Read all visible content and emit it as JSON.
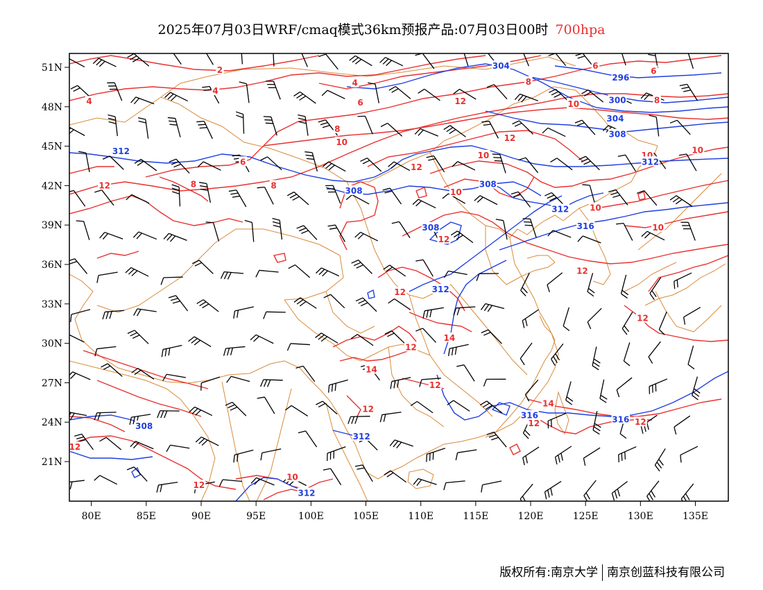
{
  "title": {
    "main": "2025年07月03日WRF/cmaq模式36km预报产品:07月03日00时",
    "level": "700hpa"
  },
  "footer": {
    "left": "版权所有:南京大学",
    "right": "南京创蓝科技有限公司"
  },
  "colors": {
    "temperature": "#e8302f",
    "geopotential": "#1f3fe0",
    "border": "#d98a3a",
    "wind": "#000000"
  },
  "axes": {
    "lat_labels": [
      "51N",
      "48N",
      "45N",
      "42N",
      "39N",
      "36N",
      "33N",
      "30N",
      "27N",
      "24N",
      "21N"
    ],
    "lon_labels": [
      "80E",
      "85E",
      "90E",
      "95E",
      "100E",
      "105E",
      "110E",
      "115E",
      "120E",
      "125E",
      "130E",
      "135E"
    ]
  },
  "contour_labels": {
    "temperature": [
      {
        "text": "2",
        "lon": 91.7,
        "lat": 50.8
      },
      {
        "text": "4",
        "lon": 79.8,
        "lat": 48.4
      },
      {
        "text": "4",
        "lon": 91.3,
        "lat": 49.2
      },
      {
        "text": "4",
        "lon": 104.0,
        "lat": 49.8
      },
      {
        "text": "6",
        "lon": 104.5,
        "lat": 48.3
      },
      {
        "text": "6",
        "lon": 125.9,
        "lat": 51.1
      },
      {
        "text": "6",
        "lon": 131.2,
        "lat": 50.7
      },
      {
        "text": "8",
        "lon": 119.8,
        "lat": 49.9
      },
      {
        "text": "8",
        "lon": 131.5,
        "lat": 48.5
      },
      {
        "text": "8",
        "lon": 102.4,
        "lat": 46.3
      },
      {
        "text": "10",
        "lon": 102.8,
        "lat": 45.3
      },
      {
        "text": "10",
        "lon": 123.9,
        "lat": 48.2
      },
      {
        "text": "12",
        "lon": 113.6,
        "lat": 48.4
      },
      {
        "text": "12",
        "lon": 118.1,
        "lat": 45.6
      },
      {
        "text": "6",
        "lon": 93.8,
        "lat": 43.8
      },
      {
        "text": "8",
        "lon": 89.3,
        "lat": 42.1
      },
      {
        "text": "8",
        "lon": 96.6,
        "lat": 42.0
      },
      {
        "text": "12",
        "lon": 81.2,
        "lat": 42.0
      },
      {
        "text": "12",
        "lon": 109.6,
        "lat": 43.4
      },
      {
        "text": "10",
        "lon": 115.7,
        "lat": 44.3
      },
      {
        "text": "10",
        "lon": 113.2,
        "lat": 41.5
      },
      {
        "text": "10",
        "lon": 130.6,
        "lat": 44.3
      },
      {
        "text": "10",
        "lon": 135.2,
        "lat": 44.7
      },
      {
        "text": "10",
        "lon": 125.9,
        "lat": 40.3
      },
      {
        "text": "10",
        "lon": 131.6,
        "lat": 38.8
      },
      {
        "text": "12",
        "lon": 112.1,
        "lat": 37.9
      },
      {
        "text": "12",
        "lon": 124.7,
        "lat": 35.5
      },
      {
        "text": "12",
        "lon": 108.1,
        "lat": 33.9
      },
      {
        "text": "14",
        "lon": 112.6,
        "lat": 30.4
      },
      {
        "text": "12",
        "lon": 109.1,
        "lat": 29.7
      },
      {
        "text": "14",
        "lon": 105.5,
        "lat": 28.0
      },
      {
        "text": "12",
        "lon": 111.3,
        "lat": 26.8
      },
      {
        "text": "12",
        "lon": 105.2,
        "lat": 25.0
      },
      {
        "text": "14",
        "lon": 121.6,
        "lat": 25.4
      },
      {
        "text": "12",
        "lon": 120.3,
        "lat": 23.9
      },
      {
        "text": "12",
        "lon": 130.0,
        "lat": 24.0
      },
      {
        "text": "12",
        "lon": 130.2,
        "lat": 31.9
      },
      {
        "text": "12",
        "lon": 78.5,
        "lat": 22.1
      },
      {
        "text": "12",
        "lon": 89.8,
        "lat": 19.2
      },
      {
        "text": "10",
        "lon": 98.3,
        "lat": 19.8
      }
    ],
    "geopotential": [
      {
        "text": "304",
        "lon": 117.3,
        "lat": 51.1
      },
      {
        "text": "296",
        "lon": 128.2,
        "lat": 50.2
      },
      {
        "text": "300",
        "lon": 127.9,
        "lat": 48.5
      },
      {
        "text": "304",
        "lon": 127.7,
        "lat": 47.1
      },
      {
        "text": "308",
        "lon": 127.9,
        "lat": 45.9
      },
      {
        "text": "312",
        "lon": 82.7,
        "lat": 44.6
      },
      {
        "text": "312",
        "lon": 130.9,
        "lat": 43.8
      },
      {
        "text": "308",
        "lon": 103.9,
        "lat": 41.6
      },
      {
        "text": "308",
        "lon": 116.1,
        "lat": 42.1
      },
      {
        "text": "312",
        "lon": 122.7,
        "lat": 40.2
      },
      {
        "text": "316",
        "lon": 125.0,
        "lat": 38.9
      },
      {
        "text": "308",
        "lon": 110.9,
        "lat": 38.8
      },
      {
        "text": "312",
        "lon": 111.8,
        "lat": 34.1
      },
      {
        "text": "316",
        "lon": 119.9,
        "lat": 24.5
      },
      {
        "text": "316",
        "lon": 128.2,
        "lat": 24.2
      },
      {
        "text": "308",
        "lon": 84.8,
        "lat": 23.7
      },
      {
        "text": "312",
        "lon": 104.6,
        "lat": 22.9
      },
      {
        "text": "312",
        "lon": 99.6,
        "lat": 18.6
      }
    ]
  }
}
